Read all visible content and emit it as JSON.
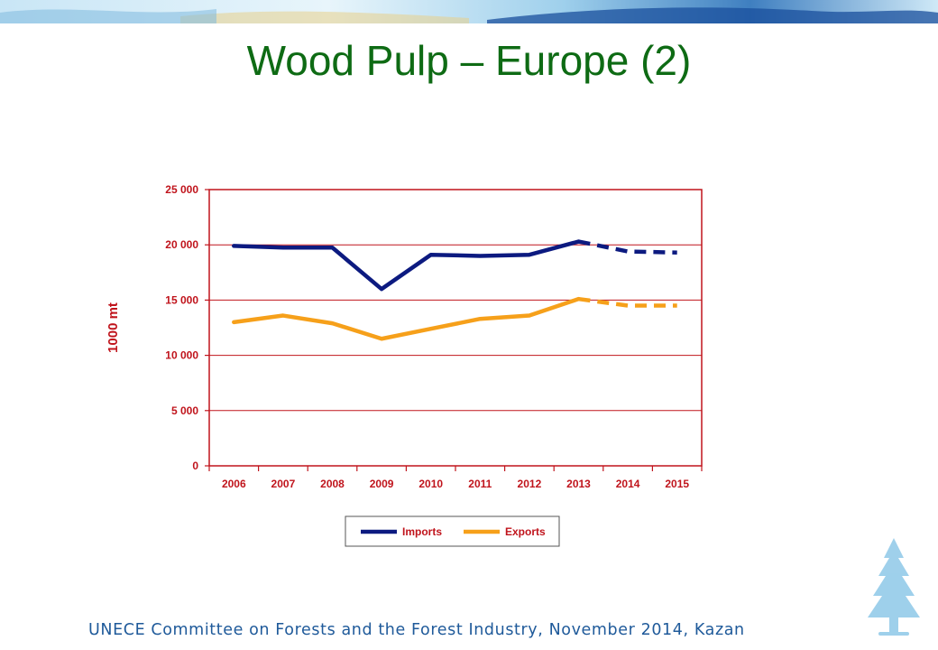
{
  "slide": {
    "title": "Wood Pulp – Europe (2)",
    "footer": "UNECE Committee on Forests and the Forest Industry, November 2014, Kazan"
  },
  "colors": {
    "title": "#0e6b14",
    "axis": "#c0141c",
    "imports": "#0c1a80",
    "exports": "#f6a01a",
    "footer": "#1f5a9a",
    "decor": "#8ec8e8"
  },
  "icons": [
    "tree-icon",
    "mosaic-banner"
  ],
  "chart_data": {
    "type": "line",
    "title": "",
    "xlabel": "",
    "ylabel": "1000 mt",
    "ylim": [
      0,
      25000
    ],
    "yticks": [
      0,
      5000,
      10000,
      15000,
      20000,
      25000
    ],
    "ytick_labels": [
      "0",
      "5 000",
      "10 000",
      "15 000",
      "20 000",
      "25 000"
    ],
    "categories": [
      "2006",
      "2007",
      "2008",
      "2009",
      "2010",
      "2011",
      "2012",
      "2013",
      "2014",
      "2015"
    ],
    "grid": "horizontal",
    "legend_position": "bottom",
    "forecast_from": "2013",
    "series": [
      {
        "name": "Imports",
        "values": [
          19900,
          19750,
          19750,
          16000,
          19100,
          19000,
          19100,
          20300,
          19400,
          19300
        ]
      },
      {
        "name": "Exports",
        "values": [
          13000,
          13600,
          12900,
          11500,
          12400,
          13300,
          13600,
          15100,
          14500,
          14500
        ]
      }
    ]
  }
}
